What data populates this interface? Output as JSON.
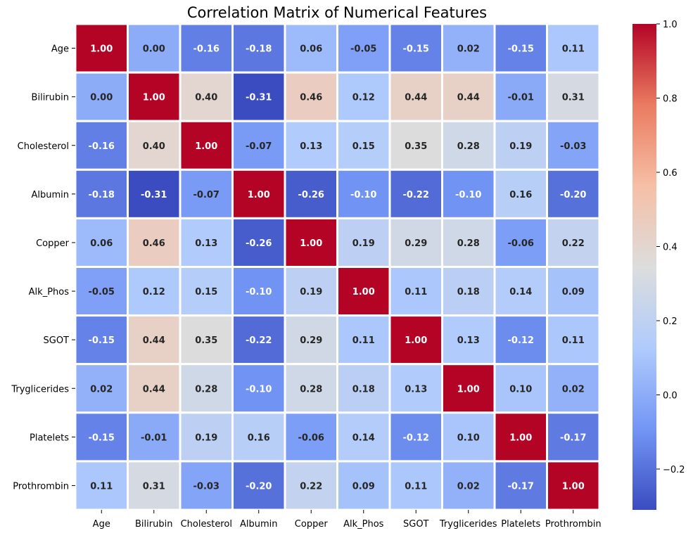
{
  "chart_data": {
    "type": "heatmap",
    "title": "Correlation Matrix of Numerical Features",
    "rows": [
      "Age",
      "Bilirubin",
      "Cholesterol",
      "Albumin",
      "Copper",
      "Alk_Phos",
      "SGOT",
      "Tryglicerides",
      "Platelets",
      "Prothrombin"
    ],
    "columns": [
      "Age",
      "Bilirubin",
      "Cholesterol",
      "Albumin",
      "Copper",
      "Alk_Phos",
      "SGOT",
      "Tryglicerides",
      "Platelets",
      "Prothrombin"
    ],
    "values": [
      [
        1.0,
        0.0,
        -0.16,
        -0.18,
        0.06,
        -0.05,
        -0.15,
        0.02,
        -0.15,
        0.11
      ],
      [
        0.0,
        1.0,
        0.4,
        -0.31,
        0.46,
        0.12,
        0.44,
        0.44,
        -0.01,
        0.31
      ],
      [
        -0.16,
        0.4,
        1.0,
        -0.07,
        0.13,
        0.15,
        0.35,
        0.28,
        0.19,
        -0.03
      ],
      [
        -0.18,
        -0.31,
        -0.07,
        1.0,
        -0.26,
        -0.1,
        -0.22,
        -0.1,
        0.16,
        -0.2
      ],
      [
        0.06,
        0.46,
        0.13,
        -0.26,
        1.0,
        0.19,
        0.29,
        0.28,
        -0.06,
        0.22
      ],
      [
        -0.05,
        0.12,
        0.15,
        -0.1,
        0.19,
        1.0,
        0.11,
        0.18,
        0.14,
        0.09
      ],
      [
        -0.15,
        0.44,
        0.35,
        -0.22,
        0.29,
        0.11,
        1.0,
        0.13,
        -0.12,
        0.11
      ],
      [
        0.02,
        0.44,
        0.28,
        -0.1,
        0.28,
        0.18,
        0.13,
        1.0,
        0.1,
        0.02
      ],
      [
        -0.15,
        -0.01,
        0.19,
        0.16,
        -0.06,
        0.14,
        -0.12,
        0.1,
        1.0,
        -0.17
      ],
      [
        0.11,
        0.31,
        -0.03,
        -0.2,
        0.22,
        0.09,
        0.11,
        0.02,
        -0.17,
        1.0
      ]
    ],
    "value_labels": [
      [
        "1.00",
        "0.00",
        "-0.16",
        "-0.18",
        "0.06",
        "-0.05",
        "-0.15",
        "0.02",
        "-0.15",
        "0.11"
      ],
      [
        "0.00",
        "1.00",
        "0.40",
        "-0.31",
        "0.46",
        "0.12",
        "0.44",
        "0.44",
        "-0.01",
        "0.31"
      ],
      [
        "-0.16",
        "0.40",
        "1.00",
        "-0.07",
        "0.13",
        "0.15",
        "0.35",
        "0.28",
        "0.19",
        "-0.03"
      ],
      [
        "-0.18",
        "-0.31",
        "-0.07",
        "1.00",
        "-0.26",
        "-0.10",
        "-0.22",
        "-0.10",
        "0.16",
        "-0.20"
      ],
      [
        "0.06",
        "0.46",
        "0.13",
        "-0.26",
        "1.00",
        "0.19",
        "0.29",
        "0.28",
        "-0.06",
        "0.22"
      ],
      [
        "-0.05",
        "0.12",
        "0.15",
        "-0.10",
        "0.19",
        "1.00",
        "0.11",
        "0.18",
        "0.14",
        "0.09"
      ],
      [
        "-0.15",
        "0.44",
        "0.35",
        "-0.22",
        "0.29",
        "0.11",
        "1.00",
        "0.13",
        "-0.12",
        "0.11"
      ],
      [
        "0.02",
        "0.44",
        "0.28",
        "-0.10",
        "0.28",
        "0.18",
        "0.13",
        "1.00",
        "0.10",
        "0.02"
      ],
      [
        "-0.15",
        "-0.01",
        "0.19",
        "0.16",
        "-0.06",
        "0.14",
        "-0.12",
        "0.10",
        "1.00",
        "-0.17"
      ],
      [
        "0.11",
        "0.31",
        "-0.03",
        "-0.20",
        "0.22",
        "0.09",
        "0.11",
        "0.02",
        "-0.17",
        "1.00"
      ]
    ],
    "colormap": "coolwarm",
    "colormap_stops": [
      "#3b4cc0",
      "#7396f5",
      "#b0cbfc",
      "#dcdddd",
      "#f6bfa6",
      "#ea7b60",
      "#b40426"
    ],
    "vmin": -0.31,
    "vmax": 1.0,
    "colorbar_ticks": [
      -0.2,
      0.0,
      0.2,
      0.4,
      0.6,
      0.8,
      1.0
    ],
    "colorbar_tick_labels": [
      "−0.2",
      "0.0",
      "0.2",
      "0.4",
      "0.6",
      "0.8",
      "1.0"
    ],
    "text_color_light": "#ffffff",
    "text_color_dark": "#262626",
    "cell_border_color": "#ffffff"
  }
}
